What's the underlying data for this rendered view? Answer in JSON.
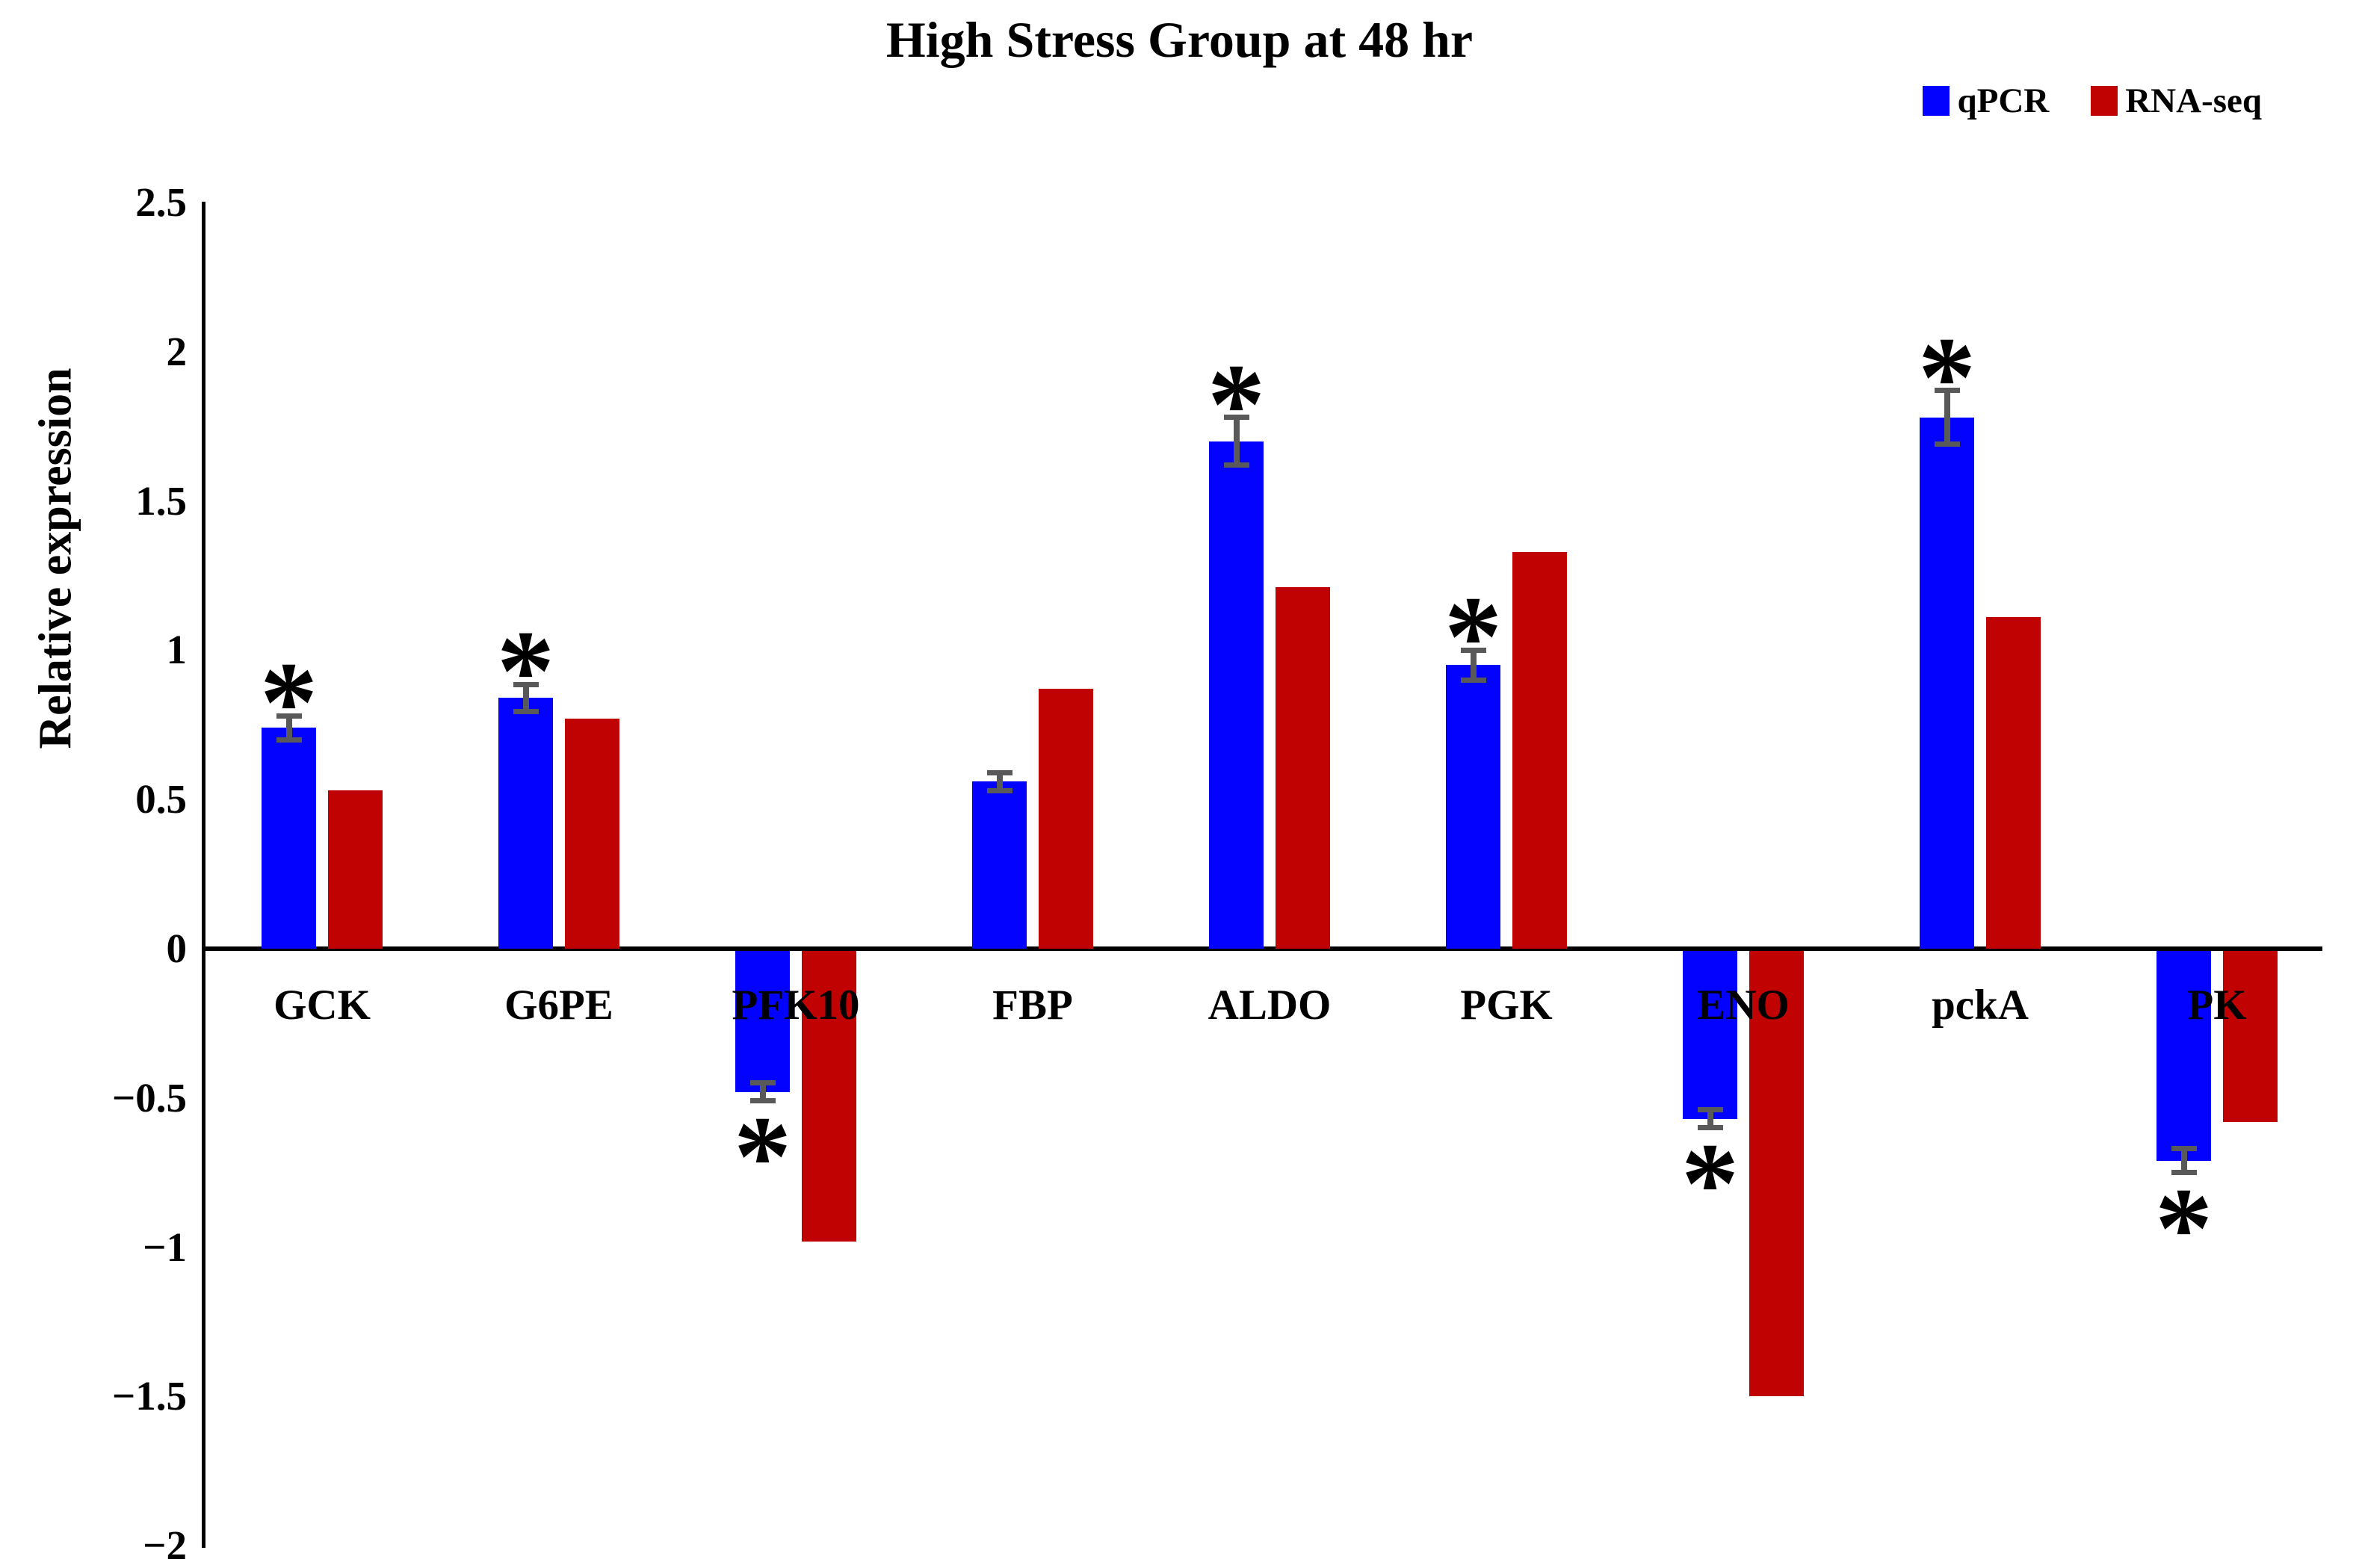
{
  "title": "High Stress Group at 48 hr",
  "legend": [
    {
      "label": "qPCR",
      "color": "#0202FE"
    },
    {
      "label": "RNA-seq",
      "color": "#C00202"
    }
  ],
  "y_axis": {
    "label": "Relative expression",
    "tick_labels": [
      "2.5",
      "2",
      "1.5",
      "1",
      "0.5",
      "0",
      "−0.5",
      "−1",
      "−1.5",
      "−2"
    ],
    "tick_values": [
      2.5,
      2,
      1.5,
      1,
      0.5,
      0,
      -0.5,
      -1,
      -1.5,
      -2
    ]
  },
  "chart_data": {
    "type": "bar",
    "title": "High Stress Group at 48 hr",
    "ylabel": "Relative expression",
    "ylim": [
      -2,
      2.5
    ],
    "ytick_step": 0.5,
    "grid": false,
    "legend_position": "top-right",
    "significance_marker": "*",
    "categories": [
      "GCK",
      "G6PE",
      "PFK10",
      "FBP",
      "ALDO",
      "PGK",
      "ENO",
      "pckA",
      "PK"
    ],
    "series": [
      {
        "name": "qPCR",
        "color": "#0202FE",
        "values": [
          0.74,
          0.84,
          -0.48,
          0.56,
          1.7,
          0.95,
          -0.57,
          1.78,
          -0.71
        ],
        "errors": [
          0.04,
          0.045,
          0.03,
          0.03,
          0.08,
          0.05,
          0.03,
          0.09,
          0.04
        ],
        "significant": [
          true,
          true,
          true,
          false,
          true,
          true,
          true,
          true,
          true
        ]
      },
      {
        "name": "RNA-seq",
        "color": "#C00202",
        "values": [
          0.53,
          0.77,
          -0.98,
          0.87,
          1.21,
          1.33,
          -1.5,
          1.11,
          -0.58
        ],
        "errors": [
          0,
          0,
          0,
          0,
          0,
          0,
          0,
          0,
          0
        ],
        "significant": [
          false,
          false,
          false,
          false,
          false,
          false,
          false,
          false,
          false
        ]
      }
    ]
  }
}
